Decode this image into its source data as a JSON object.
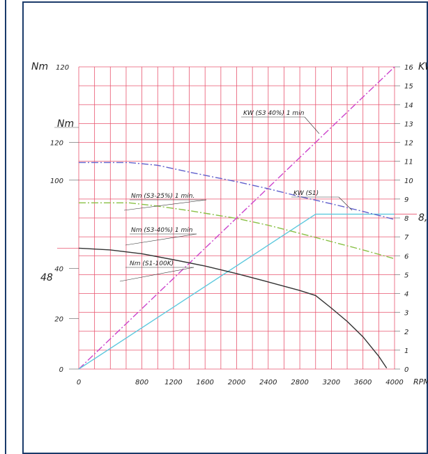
{
  "chart_data": {
    "type": "line",
    "title": "",
    "x": {
      "label": "RPM",
      "ticks": [
        0,
        800,
        1200,
        1600,
        2000,
        2400,
        2800,
        3200,
        3600,
        4000
      ],
      "range": [
        0,
        4000
      ]
    },
    "y_left": {
      "label_top": "Nm",
      "top_value": "120",
      "label_second": "Nm",
      "ticks": [
        0,
        20,
        40,
        100,
        120
      ],
      "range": [
        0,
        120
      ],
      "highlight": "48"
    },
    "y_right": {
      "label": "KW",
      "ticks": [
        0,
        1,
        2,
        3,
        4,
        5,
        6,
        7,
        8,
        9,
        10,
        11,
        12,
        13,
        14,
        15,
        16
      ],
      "range": [
        0,
        16
      ],
      "highlight": "8,..."
    },
    "grid": true,
    "series": [
      {
        "name": "KW (S3 40%) 1 min",
        "axis": "right",
        "color": "#cc44cc",
        "dash": "10 3 2 3",
        "x": [
          0,
          4000
        ],
        "y": [
          0,
          16
        ]
      },
      {
        "name": "KW (S1)",
        "axis": "right",
        "color": "#5cc8dd",
        "dash": "",
        "x": [
          0,
          3000,
          4000
        ],
        "y": [
          0,
          8.2,
          8.2
        ]
      },
      {
        "name": "Nm (S3-25%) 1 min.",
        "axis": "left",
        "color": "#6060cc",
        "dash": "10 3 2 3",
        "x": [
          0,
          640,
          1000,
          1400,
          2000,
          2400,
          2800,
          3200,
          3600,
          4000
        ],
        "y": [
          82,
          82,
          80.9,
          78.2,
          74.4,
          71.6,
          68.5,
          65.6,
          62.6,
          59.4
        ]
      },
      {
        "name": "Nm (S3-40%) 1 min",
        "axis": "left",
        "color": "#88c044",
        "dash": "10 3 2 3",
        "x": [
          0,
          640,
          1000,
          1400,
          2000,
          2400,
          2800,
          3200,
          3600,
          4000
        ],
        "y": [
          66,
          66,
          64.7,
          62.9,
          59.8,
          57.1,
          53.9,
          50.6,
          47.3,
          43.8
        ]
      },
      {
        "name": "Nm (S1-100K)",
        "axis": "left",
        "color": "#333333",
        "dash": "",
        "x": [
          0,
          400,
          800,
          1200,
          1600,
          2000,
          2400,
          2800,
          3000,
          3200,
          3400,
          3600,
          3800,
          3900
        ],
        "y": [
          48,
          47.3,
          45.8,
          43.4,
          40.9,
          37.9,
          34.6,
          31.2,
          29.2,
          24.2,
          18.9,
          12.8,
          5.1,
          0.4
        ]
      }
    ],
    "annotations": [
      {
        "text": "KW (S3 40%) 1 min",
        "series": 0
      },
      {
        "text": "KW (S1)",
        "series": 1
      },
      {
        "text": "Nm (S3-25%) 1 min.",
        "series": 2
      },
      {
        "text": "Nm (S3-40%) 1 min",
        "series": 3
      },
      {
        "text": "Nm (S1-100K)",
        "series": 4
      }
    ]
  }
}
